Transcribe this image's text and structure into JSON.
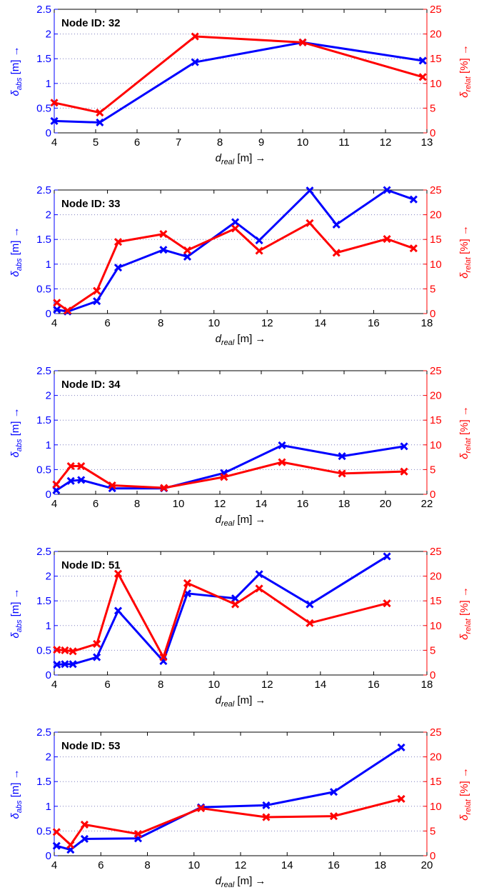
{
  "colors": {
    "abs": "#0000ff",
    "relat": "#ff0000",
    "axis": "#000000",
    "grid": "#7f7fbf"
  },
  "labels": {
    "ylabel_left_symbol": "δ",
    "ylabel_left_sub": "abs",
    "ylabel_left_unit": " [m] →",
    "ylabel_right_symbol": "δ",
    "ylabel_right_sub": "relat",
    "ylabel_right_unit": " [%] →",
    "xlabel_symbol": "d",
    "xlabel_sub": "real",
    "xlabel_unit": " [m] →"
  },
  "chart_data": [
    {
      "type": "line",
      "title": "Node ID: 32",
      "xlim": [
        4,
        13
      ],
      "xticks": [
        4,
        5,
        6,
        7,
        8,
        9,
        10,
        11,
        12,
        13
      ],
      "ylim_left": [
        0,
        2.5
      ],
      "yticks_left": [
        "0",
        "0.5",
        "1",
        "1.5",
        "2",
        "2.5"
      ],
      "ylim_right": [
        0,
        25
      ],
      "yticks_right": [
        "0",
        "5",
        "10",
        "15",
        "20",
        "25"
      ],
      "x": [
        4.0,
        5.1,
        7.4,
        10.0,
        12.9
      ],
      "abs": [
        0.24,
        0.21,
        1.43,
        1.83,
        1.46
      ],
      "relat": [
        6.1,
        4.1,
        19.5,
        18.3,
        11.3
      ]
    },
    {
      "type": "line",
      "title": "Node ID: 33",
      "xlim": [
        4,
        18
      ],
      "xticks": [
        4,
        6,
        8,
        10,
        12,
        14,
        16,
        18
      ],
      "ylim_left": [
        0,
        2.5
      ],
      "yticks_left": [
        "0",
        "0.5",
        "1",
        "1.5",
        "2",
        "2.5"
      ],
      "ylim_right": [
        0,
        25
      ],
      "yticks_right": [
        "0",
        "5",
        "10",
        "15",
        "20",
        "25"
      ],
      "x": [
        4.1,
        4.5,
        5.6,
        6.4,
        8.1,
        9.0,
        10.8,
        11.7,
        13.6,
        14.6,
        16.5,
        17.5
      ],
      "abs": [
        0.08,
        0.04,
        0.25,
        0.93,
        1.29,
        1.15,
        1.85,
        1.48,
        2.49,
        1.8,
        2.5,
        2.31
      ],
      "relat": [
        2.2,
        0.6,
        4.6,
        14.5,
        16.1,
        12.8,
        17.2,
        12.7,
        18.3,
        12.3,
        15.1,
        13.2
      ]
    },
    {
      "type": "line",
      "title": "Node ID: 34",
      "xlim": [
        4,
        22
      ],
      "xticks": [
        4,
        6,
        8,
        10,
        12,
        14,
        16,
        18,
        20,
        22
      ],
      "ylim_left": [
        0,
        2.5
      ],
      "yticks_left": [
        "0",
        "0.5",
        "1",
        "1.5",
        "2",
        "2.5"
      ],
      "ylim_right": [
        0,
        25
      ],
      "yticks_right": [
        "0",
        "5",
        "10",
        "15",
        "20",
        "25"
      ],
      "x": [
        4.1,
        4.8,
        5.3,
        6.8,
        9.3,
        12.2,
        15.0,
        17.9,
        20.9
      ],
      "abs": [
        0.08,
        0.27,
        0.29,
        0.12,
        0.12,
        0.43,
        0.99,
        0.77,
        0.97
      ],
      "relat": [
        2.0,
        5.7,
        5.7,
        1.8,
        1.3,
        3.5,
        6.5,
        4.2,
        4.6
      ]
    },
    {
      "type": "line",
      "title": "Node ID: 51",
      "xlim": [
        4,
        18
      ],
      "xticks": [
        4,
        6,
        8,
        10,
        12,
        14,
        16,
        18
      ],
      "ylim_left": [
        0,
        2.5
      ],
      "yticks_left": [
        "0",
        "0.5",
        "1",
        "1.5",
        "2",
        "2.5"
      ],
      "ylim_right": [
        0,
        25
      ],
      "yticks_right": [
        "0",
        "5",
        "10",
        "15",
        "20",
        "25"
      ],
      "x": [
        4.1,
        4.4,
        4.7,
        5.6,
        6.4,
        8.1,
        9.0,
        10.8,
        11.7,
        13.6,
        16.5
      ],
      "abs": [
        0.21,
        0.22,
        0.22,
        0.36,
        1.3,
        0.28,
        1.65,
        1.55,
        2.04,
        1.43,
        2.4
      ],
      "relat": [
        5.1,
        5.0,
        4.8,
        6.3,
        20.5,
        3.6,
        18.6,
        14.3,
        17.5,
        10.5,
        14.5
      ]
    },
    {
      "type": "line",
      "title": "Node ID: 53",
      "xlim": [
        4,
        20
      ],
      "xticks": [
        4,
        6,
        8,
        10,
        12,
        14,
        16,
        18,
        20
      ],
      "ylim_left": [
        0,
        2.5
      ],
      "yticks_left": [
        "0",
        "0.5",
        "1",
        "1.5",
        "2",
        "2.5"
      ],
      "ylim_right": [
        0,
        25
      ],
      "yticks_right": [
        "0",
        "5",
        "10",
        "15",
        "20",
        "25"
      ],
      "x": [
        4.1,
        4.7,
        5.3,
        7.6,
        10.3,
        13.1,
        16.0,
        18.9
      ],
      "abs": [
        0.2,
        0.12,
        0.34,
        0.35,
        0.98,
        1.02,
        1.29,
        2.19
      ],
      "relat": [
        4.8,
        2.2,
        6.3,
        4.4,
        9.6,
        7.8,
        8.0,
        11.5
      ]
    }
  ]
}
